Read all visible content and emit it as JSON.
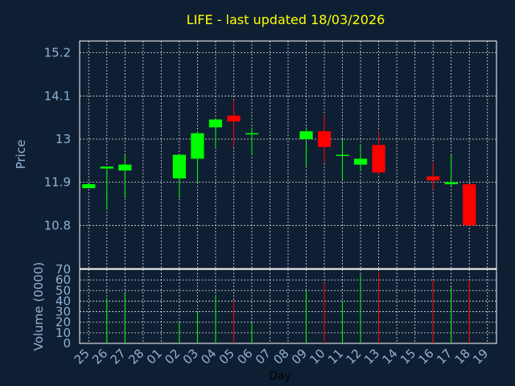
{
  "chart_data": {
    "type": "candlestick",
    "title": "LIFE - last updated 18/03/2026",
    "price_panel": {
      "ylabel": "Price",
      "ylim": [
        9.7,
        15.5
      ],
      "yticks": [
        "10.8",
        "11.9",
        "13",
        "14.1",
        "15.2"
      ],
      "ytick_values": [
        10.8,
        11.9,
        13.0,
        14.1,
        15.2
      ],
      "grid": true
    },
    "volume_panel": {
      "ylabel": "Volume (0000)",
      "ylim": [
        0,
        70
      ],
      "yticks": [
        "0",
        "10",
        "20",
        "30",
        "40",
        "50",
        "60",
        "70"
      ],
      "ytick_values": [
        0,
        10,
        20,
        30,
        40,
        50,
        60,
        70
      ],
      "grid": true
    },
    "xlabel": "Day",
    "x_categories": [
      "25",
      "26",
      "27",
      "28",
      "01",
      "02",
      "03",
      "04",
      "05",
      "06",
      "07",
      "08",
      "09",
      "10",
      "11",
      "12",
      "13",
      "14",
      "15",
      "16",
      "17",
      "18",
      "19"
    ],
    "colors": {
      "up": "#00ff00",
      "down": "#ff0000"
    },
    "candles": [
      {
        "day": "25",
        "open": 11.75,
        "high": 11.85,
        "low": 11.75,
        "close": 11.85,
        "volume": 0
      },
      {
        "day": "26",
        "open": 12.25,
        "high": 12.3,
        "low": 11.2,
        "close": 12.3,
        "volume": 43
      },
      {
        "day": "27",
        "open": 12.2,
        "high": 12.6,
        "low": 11.5,
        "close": 12.35,
        "volume": 48
      },
      {
        "day": "02",
        "open": 12.0,
        "high": 12.6,
        "low": 11.5,
        "close": 12.6,
        "volume": 20
      },
      {
        "day": "03",
        "open": 12.5,
        "high": 13.2,
        "low": 11.9,
        "close": 13.15,
        "volume": 30
      },
      {
        "day": "04",
        "open": 13.3,
        "high": 13.5,
        "low": 12.8,
        "close": 13.5,
        "volume": 46
      },
      {
        "day": "05",
        "open": 13.6,
        "high": 14.0,
        "low": 12.8,
        "close": 13.45,
        "volume": 41
      },
      {
        "day": "06",
        "open": 13.15,
        "high": 13.3,
        "low": 12.6,
        "close": 13.15,
        "volume": 20
      },
      {
        "day": "09",
        "open": 13.0,
        "high": 13.3,
        "low": 12.3,
        "close": 13.2,
        "volume": 50
      },
      {
        "day": "10",
        "open": 13.2,
        "high": 13.6,
        "low": 12.4,
        "close": 12.8,
        "volume": 57
      },
      {
        "day": "11",
        "open": 12.6,
        "high": 13.0,
        "low": 11.95,
        "close": 12.6,
        "volume": 40
      },
      {
        "day": "12",
        "open": 12.35,
        "high": 12.85,
        "low": 12.2,
        "close": 12.5,
        "volume": 65
      },
      {
        "day": "13",
        "open": 12.85,
        "high": 13.2,
        "low": 12.1,
        "close": 12.15,
        "volume": 67
      },
      {
        "day": "16",
        "open": 12.05,
        "high": 12.4,
        "low": 11.7,
        "close": 11.95,
        "volume": 60
      },
      {
        "day": "17",
        "open": 11.85,
        "high": 12.6,
        "low": 11.8,
        "close": 11.9,
        "volume": 53
      },
      {
        "day": "18",
        "open": 11.85,
        "high": 11.85,
        "low": 10.8,
        "close": 10.8,
        "volume": 60
      }
    ]
  }
}
